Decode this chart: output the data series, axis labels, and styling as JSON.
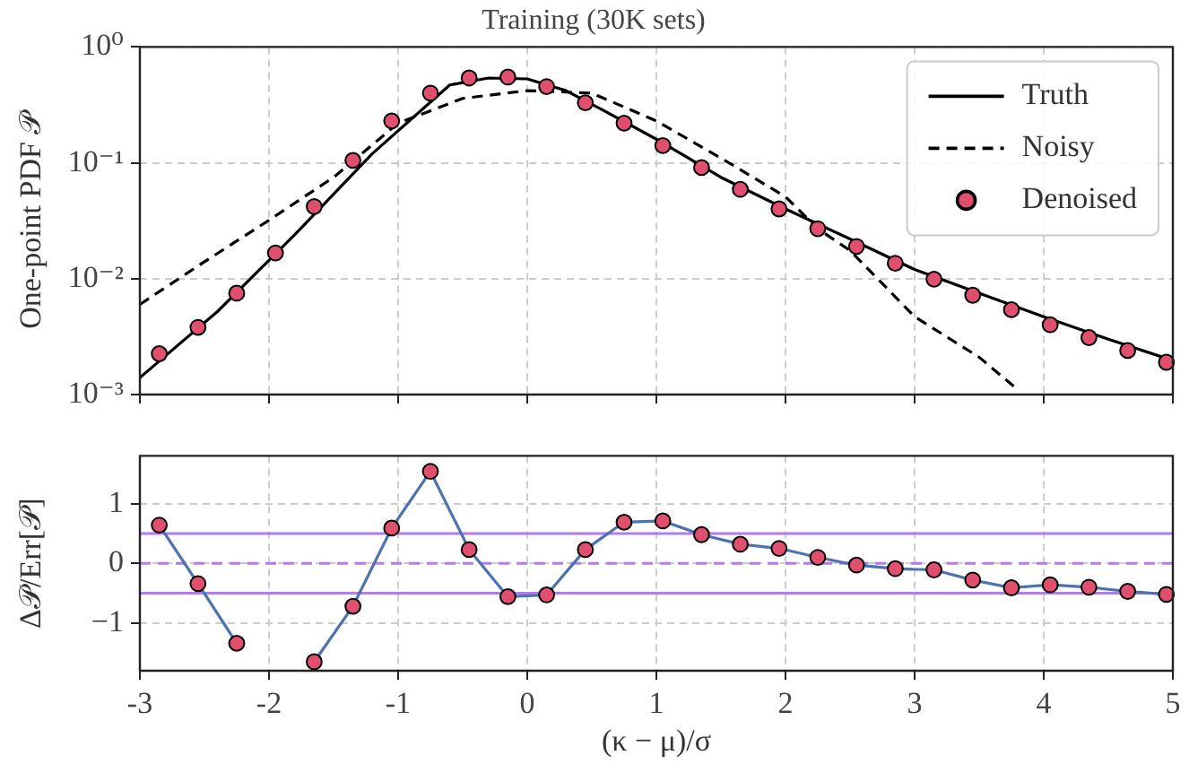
{
  "chart_data": [
    {
      "type": "line",
      "title": "Training (30K sets)",
      "ylabel": "One-point PDF 𝒫",
      "log": true,
      "xlim": [
        -3,
        5
      ],
      "xticks": [
        -3,
        -2,
        -1,
        0,
        1,
        2,
        3,
        4,
        5
      ],
      "ylim": [
        0.001,
        1
      ],
      "yticks": [
        {
          "value": 0.001,
          "label": "10⁻³"
        },
        {
          "value": 0.01,
          "label": "10⁻²"
        },
        {
          "value": 0.1,
          "label": "10⁻¹"
        },
        {
          "value": 1,
          "label": "10⁰"
        }
      ],
      "tick_labels": "y",
      "grid": true,
      "legend": "top right",
      "series": [
        {
          "name": "Truth",
          "type": "line",
          "color": "#000000",
          "line_style": "solid",
          "marker": "none",
          "x": [
            -3,
            -2.4,
            -1.8,
            -1.2,
            -0.6,
            -0.3,
            0,
            0.3,
            0.6,
            1,
            1.5,
            2,
            2.5,
            3,
            3.5,
            4,
            4.5,
            5
          ],
          "values": [
            0.0014,
            0.0052,
            0.024,
            0.12,
            0.47,
            0.54,
            0.53,
            0.42,
            0.28,
            0.16,
            0.075,
            0.04,
            0.022,
            0.012,
            0.0075,
            0.0047,
            0.003,
            0.00197
          ]
        },
        {
          "name": "Noisy",
          "type": "line",
          "color": "#000000",
          "line_style": "dashed",
          "marker": "none",
          "x": [
            -3,
            -2.5,
            -2,
            -1.5,
            -1,
            -0.5,
            0,
            0.5,
            1,
            1.5,
            2,
            2.25,
            2.5,
            3,
            3.5,
            3.8
          ],
          "values": [
            0.006,
            0.014,
            0.032,
            0.075,
            0.22,
            0.36,
            0.42,
            0.4,
            0.23,
            0.11,
            0.051,
            0.027,
            0.0175,
            0.0047,
            0.0021,
            0.0011
          ]
        },
        {
          "name": "Denoised",
          "type": "scatter",
          "color": "#e0506e",
          "marker": "circle",
          "x": [
            -2.85,
            -2.55,
            -2.25,
            -1.95,
            -1.65,
            -1.35,
            -1.05,
            -0.75,
            -0.45,
            -0.15,
            0.15,
            0.45,
            0.75,
            1.05,
            1.35,
            1.65,
            1.95,
            2.25,
            2.55,
            2.85,
            3.15,
            3.45,
            3.75,
            4.05,
            4.35,
            4.65,
            4.95
          ],
          "values": [
            0.00225,
            0.0038,
            0.0075,
            0.0167,
            0.042,
            0.105,
            0.23,
            0.4,
            0.54,
            0.55,
            0.455,
            0.33,
            0.22,
            0.141,
            0.091,
            0.059,
            0.04,
            0.027,
            0.019,
            0.0136,
            0.0099,
            0.0072,
            0.0054,
            0.004,
            0.0031,
            0.0024,
            0.0019
          ]
        }
      ]
    },
    {
      "type": "line",
      "xlabel": "(κ − μ)/σ",
      "ylabel": "Δ𝒫/Err[𝒫]",
      "xlim": [
        -3,
        5
      ],
      "xticks": [
        -3,
        -2,
        -1,
        0,
        1,
        2,
        3,
        4,
        5
      ],
      "ylim": [
        -1.8,
        1.8
      ],
      "yticks": [
        {
          "value": -1,
          "label": "−1"
        },
        0,
        1
      ],
      "grid": true,
      "x": [
        -2.85,
        -2.55,
        -2.25,
        -1.95,
        -1.65,
        -1.35,
        -1.05,
        -0.75,
        -0.45,
        -0.15,
        0.15,
        0.45,
        0.75,
        1.05,
        1.35,
        1.65,
        1.95,
        2.25,
        2.55,
        2.85,
        3.15,
        3.45,
        3.75,
        4.05,
        4.35,
        4.65,
        4.95
      ],
      "ref_lines": [
        {
          "axis": "y",
          "value": 0.5,
          "color": "#b57bee",
          "line_style": "solid"
        },
        {
          "axis": "y",
          "value": 0,
          "color": "#b57bee",
          "line_style": "dashed"
        },
        {
          "axis": "y",
          "value": -0.5,
          "color": "#b57bee",
          "line_style": "solid"
        }
      ],
      "series": [
        {
          "type": "line",
          "color": "#4c72b0",
          "marker": "none",
          "values": [
            0.64,
            -0.34,
            -1.34,
            null,
            -1.65,
            -0.72,
            0.59,
            1.54,
            0.23,
            -0.56,
            -0.53,
            0.23,
            0.69,
            0.71,
            0.48,
            0.32,
            0.25,
            0.1,
            -0.03,
            -0.09,
            -0.11,
            -0.28,
            -0.41,
            -0.36,
            -0.4,
            -0.47,
            -0.52
          ]
        },
        {
          "type": "scatter",
          "color": "#e0506e",
          "marker": "circle",
          "values": [
            0.64,
            -0.34,
            -1.34,
            null,
            -1.65,
            -0.72,
            0.59,
            1.54,
            0.23,
            -0.56,
            -0.53,
            0.23,
            0.69,
            0.71,
            0.48,
            0.32,
            0.25,
            0.1,
            -0.03,
            -0.09,
            -0.11,
            -0.28,
            -0.41,
            -0.36,
            -0.4,
            -0.47,
            -0.52
          ]
        }
      ]
    }
  ]
}
